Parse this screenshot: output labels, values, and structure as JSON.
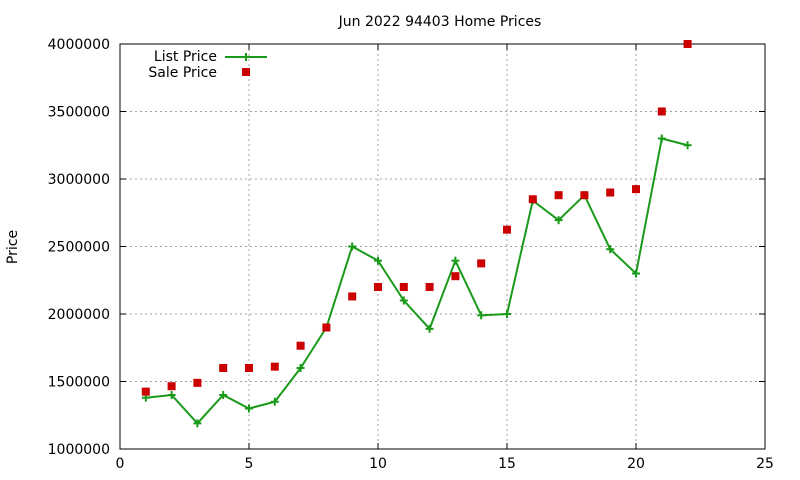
{
  "chart_data": {
    "type": "line",
    "title": "Jun 2022 94403 Home Prices",
    "xlabel": "",
    "ylabel": "Price",
    "xlim": [
      0,
      25
    ],
    "ylim": [
      1000000,
      4000000
    ],
    "x_ticks": [
      "0",
      "5",
      "10",
      "15",
      "20",
      "25"
    ],
    "y_ticks": [
      "1000000",
      "1500000",
      "2000000",
      "2500000",
      "3000000",
      "3500000",
      "4000000"
    ],
    "grid": true,
    "legend_position": "top-left",
    "series": [
      {
        "name": "List Price",
        "style": "line-with-plus-markers",
        "color": "#1a9a1a",
        "x": [
          1,
          2,
          3,
          4,
          5,
          6,
          7,
          8,
          9,
          10,
          11,
          12,
          13,
          14,
          15,
          16,
          17,
          18,
          19,
          20,
          21,
          22
        ],
        "y": [
          1380000,
          1400000,
          1190000,
          1400000,
          1300000,
          1350000,
          1600000,
          1900000,
          2500000,
          2395000,
          2100000,
          1890000,
          2395000,
          1990000,
          2000000,
          2840000,
          2695000,
          2880000,
          2480000,
          2300000,
          3300000,
          3250000
        ]
      },
      {
        "name": "Sale Price",
        "style": "square-markers",
        "color": "#cc0000",
        "x": [
          1,
          2,
          3,
          4,
          5,
          6,
          7,
          8,
          9,
          10,
          11,
          12,
          13,
          14,
          15,
          16,
          17,
          18,
          19,
          20,
          21,
          22
        ],
        "y": [
          1425000,
          1465000,
          1490000,
          1600000,
          1600000,
          1610000,
          1765000,
          1900000,
          2130000,
          2200000,
          2200000,
          2200000,
          2280000,
          2375000,
          2625000,
          2850000,
          2880000,
          2880000,
          2900000,
          2925000,
          3500000,
          4000000
        ]
      }
    ]
  }
}
